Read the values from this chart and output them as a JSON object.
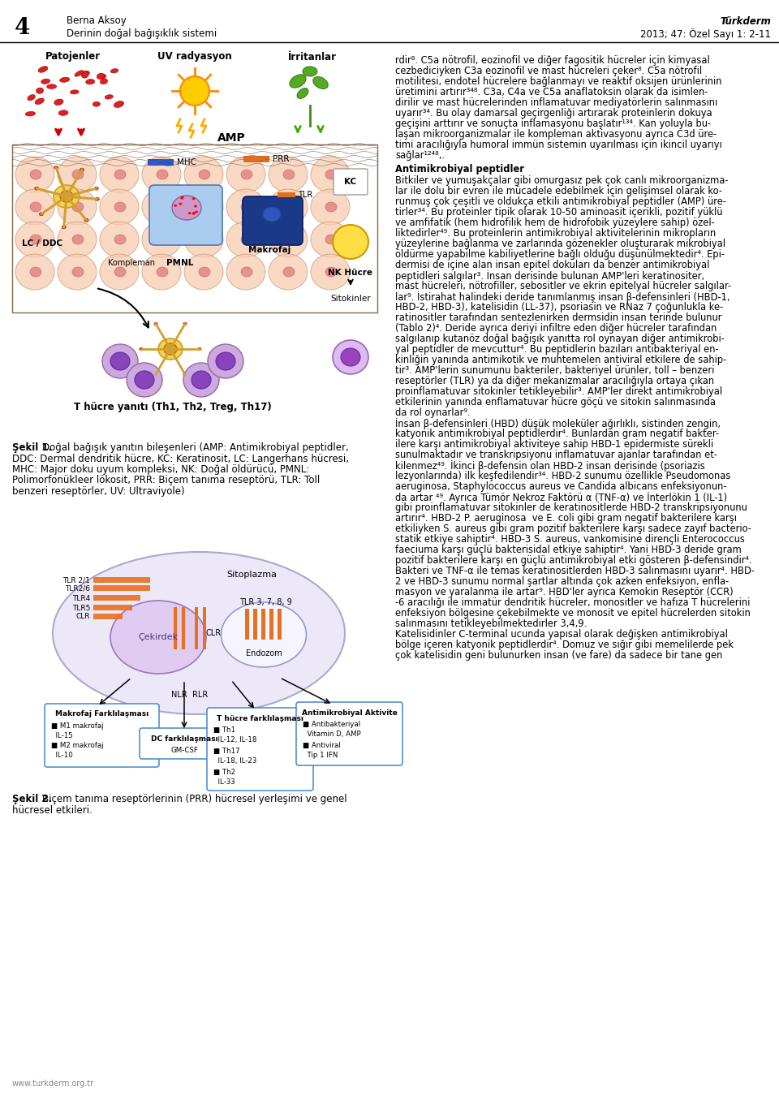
{
  "page_number": "4",
  "author_name": "Berna Aksoy",
  "article_title": "Derinin doğal bağışıklık sistemi",
  "journal_title": "Türkderm",
  "journal_info": "2013; 47: Özel Sayı 1: 2-11",
  "website": "www.turkderm.org.tr",
  "fig1_caption_bold": "Şekil 1.",
  "fig1_caption_rest": "Doğal bağışık yanıtın bileşenleri (AMP: Antimikrobiyal peptidler, DDC: Dermal dendritik hücre, KC: Keratinosit, LC: Langerhans hücresi, MHC: Major doku uyum kompleksi, NK: Doğal öldürücü, PMNL: Polimorfonükleer lökosit, PRR: Biçem tanıma reseptörü, TLR: Toll benzeri reseptörler, UV: Ultraviyole)",
  "fig2_caption_bold": "Şekil 2.",
  "fig2_caption_rest": "Biçem tanıma reseptörlerinin (PRR) hücresel yerleşimi ve genel hücresel etkileri.",
  "right_text": [
    "rdir⁸. C5a nötrofil, eozinofil ve diğer fagositik hücreler için kimyasal",
    "cezbediciyken C3a eozinofil ve mast hücreleri çeker⁸. C5a nötrofil",
    "motilitesi, endotel hücrelere bağlanmayı ve reaktif oksijen ürünlerinin",
    "üretimini artırır³⁴⁸. C3a, C4a ve C5a anaflatoksin olarak da isimlen-",
    "dirilir ve mast hücrelerinden inflamatuvar mediyatörlerin salınmasını",
    "uyarır³⁴. Bu olay damarsal geçirgenliği artırarak proteinlerin dokuya",
    "geçişini arttırır ve sonuçta inflamasyonu başlatır¹³⁴. Kan yoluyla bu-",
    "laşan mikroorganizmalar ile kompleman aktivasyonu ayrıca C3d üre-",
    "timi aracılığıyla humoral immün sistemin uyarılması için ikincil uyarıyı",
    "sağlar¹²⁴⁸,."
  ],
  "right_heading": "Antimikrobiyal peptidler",
  "right_text2": [
    "Bitkiler ve yumuşakçalar gibi omurgasız pek çok canlı mikroorganizma-",
    "lar ile dolu bir evren ile mücadele edebilmek için gelişimsel olarak ko-",
    "runmuş çok çeşitli ve oldukça etkili antimikrobiyal peptidler (AMP) üre-",
    "tirler³⁴. Bu proteinler tipik olarak 10-50 aminoasit içerikli, pozitif yüklü",
    "ve amfifatik (hem hidrofilik hem de hidrofobik yüzeylere sahip) özel-",
    "liktedirler⁴⁹. Bu proteinlerin antimikrobiyal aktivitelerinin mikropların",
    "yüzeylerine bağlanma ve zarlarında gözenekler oluşturarak mikrobiyal",
    "öldürme yapabilme kabiliyetlerine bağlı olduğu düşünülmektedir⁴. Epi-",
    "dermisi de içine alan insan epitel dokuları da benzer antimikrobiyal",
    "peptidleri salgılar³. İnsan derisinde bulunan AMP'leri keratinositer,",
    "mast hücreleri, nötrofiller, sebositler ve ekrin epitelyal hücreler salgılar-",
    "lar⁹. İstirahat halindeki deride tanımlanmış insan β-defensinleri (HBD-1,",
    "HBD-2, HBD-3), katelisidin (LL-37), psoriasin ve RNaz 7 çoğunlukla ke-",
    "ratinositler tarafından sentezlenirken dermsidin insan terinde bulunur",
    "(Tablo 2)⁴. Deride ayrıca deriyi infiltre eden diğer hücreler tarafından",
    "salgılanıp kutanöz doğal bağışık yanıtta rol oynayan diğer antimikrobi-",
    "yal peptidler de mevcuttur⁴. Bu peptidlerin bazıları antibakteriyal en-",
    "kinliğin yanında antimikotik ve muhtemelen antiviral etkilere de sahip-",
    "tir³. AMP'lerin sunumunu bakteriler, bakteriyel ürünler, toll – benzeri",
    "reseptörler (TLR) ya da diğer mekanizmalar aracılığıyla ortaya çıkan",
    "proinflamatuvar sitokinler tetikleyebilir³. AMP'ler direkt antimikrobiyal",
    "etkilerinin yanında enflamatuvar hücre göçü ve sitokin salınmasında",
    "da rol oynarlar⁹.",
    "İnsan β-defensinleri (HBD) düşük moleküler ağırlıklı, sistinden zengin,",
    "katyonik antimikrobiyal peptidlerdir⁴. Bunlardan gram negatif bakter-",
    "ilere karşı antimikrobiyal aktiviteye sahip HBD-1 epidermiste sürekli",
    "sunulmaktadır ve transkripsiyonu inflamatuvar ajanlar tarafından et-",
    "kilenmez⁴⁹. İkinci β-defensin olan HBD-2 insan derisinde (psoriazis",
    "lezyonlarında) ilk keşfedilendir³⁴. HBD-2 sunumu özellikle Pseudomonas",
    "aeruginosa, Staphylococcus aureus ve Candida albicans enfeksiyonun-",
    "da artar ⁴⁹. Ayrıca Tümör Nekroz Faktörü α (TNF-α) ve İnterlökin 1 (IL-1)",
    "gibi proinflamatuvar sitokinler de keratinositlerde HBD-2 transkripsiyonunu",
    "artırır⁴. HBD-2 P. aeruginosa  ve E. coli gibi gram negatif bakterilere karşı",
    "etkiliyken S. aureus gibi gram pozitif bakterilere karşı sadece zayıf bacterio-",
    "statik etkiye sahiptir⁴. HBD-3 S. aureus, vankomisine dirençli Enterococcus",
    "faeciuma karşı güçlü bakterisidal etkiye sahiptir⁴. Yani HBD-3 deride gram",
    "pozitif bakterilere karşı en güçlü antimikrobiyal etki gösteren β-defensindir⁴.",
    "Bakteri ve TNF-α ile temas keratinositlerden HBD-3 salınmasını uyarır⁴. HBD-",
    "2 ve HBD-3 sunumu normal şartlar altında çok azken enfeksiyon, enfla-",
    "masyon ve yaralanma ile artar⁹. HBD'ler ayrıca Kemokin Reseptör (CCR)",
    "-6 aracılığı ile immatür dendritik hücreler, monositler ve hafıza T hücrelerini",
    "enfeksiyon bölgesine çekebilmekte ve monosit ve epitel hücrelerden sitokin",
    "salınmasını tetikleyebilmektedirler 3,4,9.",
    "Katelisidinler C-terminal ucunda yapısal olarak değişken antimikrobiyal",
    "bölge içeren katyonik peptidlerdir⁴. Domuz ve sığır gibi memelilerde pek",
    "çok katelisidin geni bulunurken insan (ve fare) da sadece bir tane gen"
  ]
}
